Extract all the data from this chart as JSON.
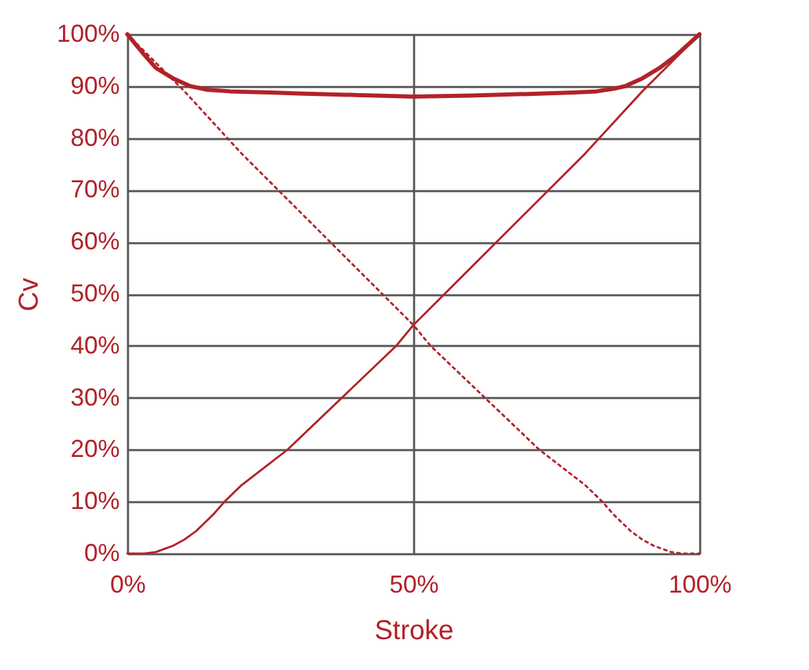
{
  "chart_data": {
    "type": "line",
    "xlabel": "Stroke",
    "ylabel": "Cv",
    "xlim": [
      0,
      100
    ],
    "ylim": [
      0,
      100
    ],
    "xticks": [
      {
        "value": 0,
        "label": "0%"
      },
      {
        "value": 50,
        "label": "50%"
      },
      {
        "value": 100,
        "label": "100%"
      }
    ],
    "yticks": [
      {
        "value": 0,
        "label": "0%"
      },
      {
        "value": 10,
        "label": "10%"
      },
      {
        "value": 20,
        "label": "20%"
      },
      {
        "value": 30,
        "label": "30%"
      },
      {
        "value": 40,
        "label": "40%"
      },
      {
        "value": 50,
        "label": "50%"
      },
      {
        "value": 60,
        "label": "60%"
      },
      {
        "value": 70,
        "label": "70%"
      },
      {
        "value": 80,
        "label": "80%"
      },
      {
        "value": 90,
        "label": "90%"
      },
      {
        "value": 100,
        "label": "100%"
      }
    ],
    "grid": true,
    "legend": false,
    "marker": "none",
    "series": [
      {
        "color": "#b22229",
        "line_style": "solid",
        "x": [
          0,
          3,
          5,
          8,
          11,
          14,
          18,
          25,
          30,
          40,
          50,
          60,
          70,
          78,
          82,
          85,
          87,
          90,
          93,
          96,
          100
        ],
        "values": [
          100,
          96,
          93.5,
          91.5,
          90,
          89.3,
          89,
          88.8,
          88.6,
          88.3,
          88,
          88.2,
          88.5,
          88.8,
          89,
          89.5,
          90,
          91.5,
          93.5,
          96,
          100
        ]
      },
      {
        "color": "#b22229",
        "line_style": "solid",
        "x": [
          0,
          3,
          5,
          8,
          10,
          12,
          15,
          17,
          20,
          28,
          37.5,
          47,
          50,
          60,
          70,
          80,
          90,
          95,
          100
        ],
        "values": [
          0,
          0,
          0.3,
          1.5,
          2.7,
          4.3,
          7.5,
          10,
          13.2,
          20,
          30,
          40,
          44,
          55,
          66,
          77,
          89,
          94.5,
          100
        ]
      },
      {
        "color": "#b22229",
        "line_style": "dotted",
        "x": [
          0,
          5,
          10,
          20,
          30,
          40,
          50,
          53,
          62.5,
          72,
          80,
          83,
          85,
          88,
          90,
          92,
          95,
          97,
          100
        ],
        "values": [
          100,
          94.5,
          89,
          77,
          66,
          55,
          44,
          40,
          30,
          20,
          13.2,
          10,
          7.5,
          4.3,
          2.7,
          1.5,
          0.3,
          0,
          0
        ]
      }
    ]
  }
}
